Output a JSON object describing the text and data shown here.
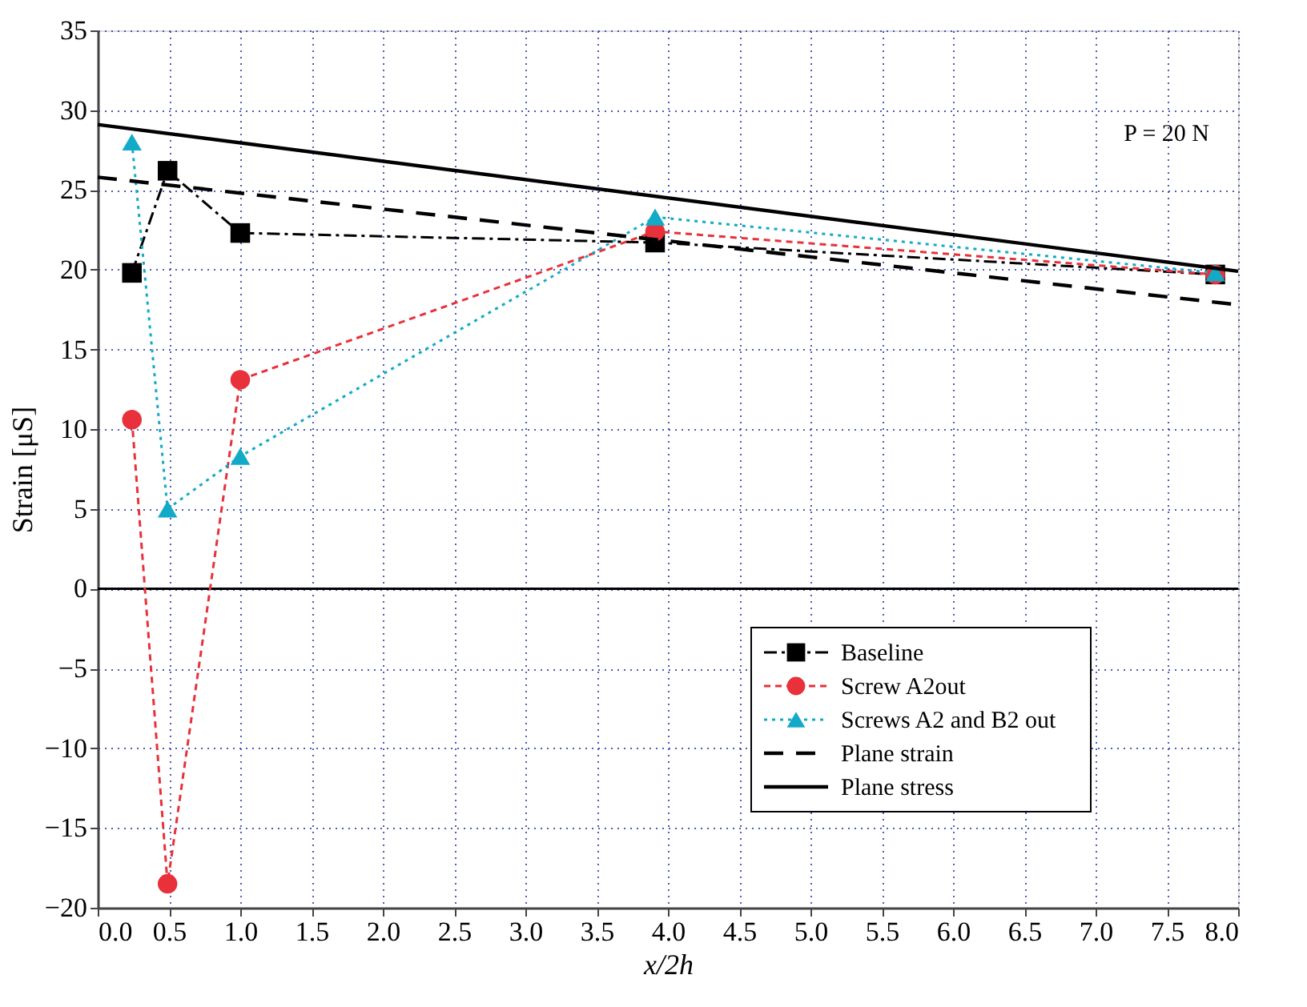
{
  "chart_data": {
    "type": "line",
    "xlabel": "x/2h",
    "ylabel": "Strain [μS]",
    "xlim": [
      0,
      8
    ],
    "xticks": [
      {
        "value": 0,
        "label": "0.0"
      },
      {
        "value": 0.5,
        "label": "0.5"
      },
      {
        "value": 1,
        "label": "1.0"
      },
      {
        "value": 1.5,
        "label": "1.5"
      },
      {
        "value": 2,
        "label": "2.0"
      },
      {
        "value": 2.5,
        "label": "2.5"
      },
      {
        "value": 3,
        "label": "3.0"
      },
      {
        "value": 3.5,
        "label": "3.5"
      },
      {
        "value": 4,
        "label": "4.0"
      },
      {
        "value": 4.5,
        "label": "4.5"
      },
      {
        "value": 5,
        "label": "5.0"
      },
      {
        "value": 5.5,
        "label": "5.5"
      },
      {
        "value": 6,
        "label": "6.0"
      },
      {
        "value": 6.5,
        "label": "6.5"
      },
      {
        "value": 7,
        "label": "7.0"
      },
      {
        "value": 7.5,
        "label": "7.5"
      },
      {
        "value": 8,
        "label": "8.0"
      }
    ],
    "ylim": [
      -20,
      35
    ],
    "yticks": [
      -20,
      -15,
      -10,
      -5,
      0,
      5,
      10,
      15,
      20,
      25,
      30,
      35
    ],
    "grid": true,
    "legend": "bottom right",
    "ref_lines": [
      {
        "axis": "y",
        "value": 0,
        "color": "#000000",
        "line_style": "solid"
      }
    ],
    "annotations": [
      "P = 20 N"
    ],
    "series": [
      {
        "name": "Baseline",
        "color": "#000000",
        "marker": "square",
        "line_style": "dashdot",
        "x": [
          0.24,
          0.49,
          1.0,
          3.91,
          7.84
        ],
        "values": [
          19.8,
          26.2,
          22.3,
          21.7,
          19.7
        ]
      },
      {
        "name": "Screw A2out",
        "color": "#e8313a",
        "marker": "circle",
        "line_style": "dashed",
        "x": [
          0.24,
          0.49,
          1.0,
          3.91,
          7.84
        ],
        "values": [
          10.6,
          -18.5,
          13.1,
          22.4,
          19.7
        ]
      },
      {
        "name": "Screws A2 and B2 out",
        "color": "#13aac8",
        "marker": "triangle",
        "line_style": "dotted",
        "x": [
          0.24,
          0.49,
          1.0,
          3.91,
          7.84
        ],
        "values": [
          28.0,
          5.0,
          8.3,
          23.3,
          19.8
        ]
      },
      {
        "name": "Plane strain",
        "color": "#000000",
        "marker": "none",
        "line_style": "longdash",
        "x": [
          0,
          8
        ],
        "values": [
          25.8,
          17.8
        ]
      },
      {
        "name": "Plane stress",
        "color": "#000000",
        "marker": "none",
        "line_style": "solid",
        "x": [
          0,
          8
        ],
        "values": [
          29.1,
          19.9
        ]
      }
    ]
  }
}
